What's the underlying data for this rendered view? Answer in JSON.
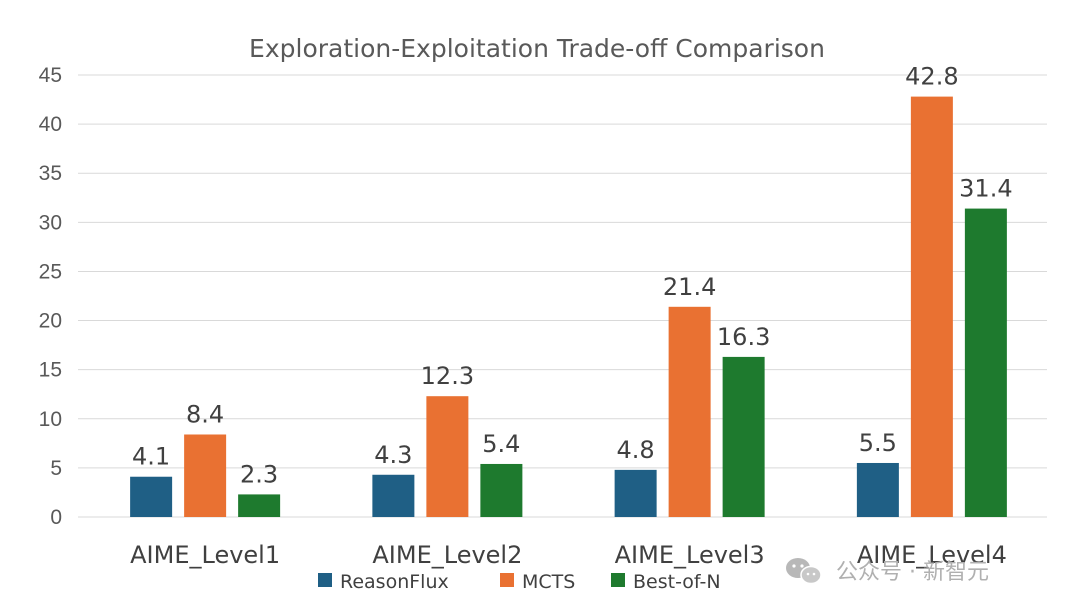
{
  "chart_data": {
    "type": "bar",
    "title": "Exploration-Exploitation Trade-off Comparison",
    "categories": [
      "AIME_Level1",
      "AIME_Level2",
      "AIME_Level3",
      "AIME_Level4"
    ],
    "series": [
      {
        "name": "ReasonFlux",
        "color": "#1f5f85",
        "values": [
          4.1,
          4.3,
          4.8,
          5.5
        ]
      },
      {
        "name": "MCTS",
        "color": "#e97132",
        "values": [
          8.4,
          12.3,
          21.4,
          42.8
        ]
      },
      {
        "name": "Best-of-N",
        "color": "#1e7a2e",
        "values": [
          2.3,
          5.4,
          16.3,
          31.4
        ]
      }
    ],
    "xlabel": "",
    "ylabel": "",
    "ylim": [
      0,
      45
    ],
    "yticks": [
      0,
      5,
      10,
      15,
      20,
      25,
      30,
      35,
      40,
      45
    ],
    "grid": true,
    "legend": "bottom"
  },
  "watermark": {
    "text": "公众号 · 新智元",
    "icon": "wechat-icon"
  }
}
